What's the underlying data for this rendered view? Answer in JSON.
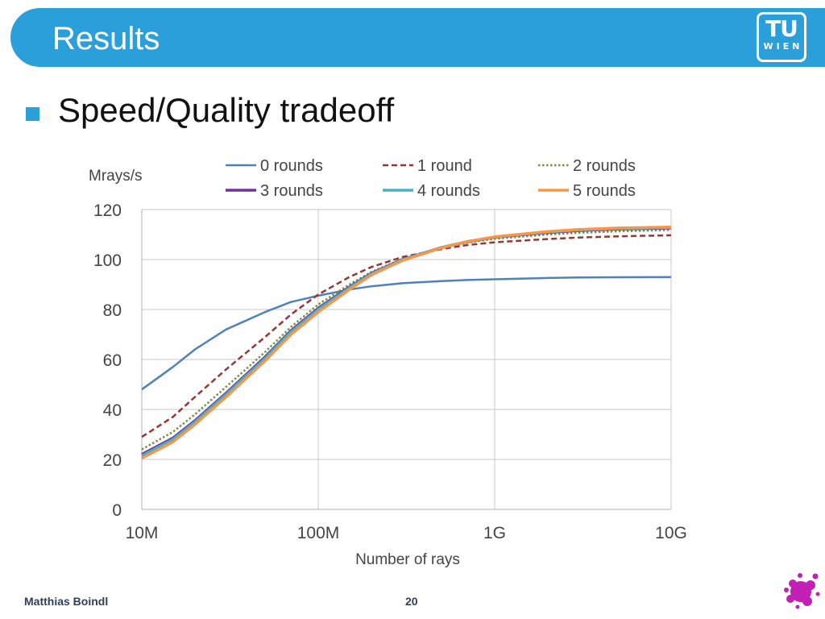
{
  "slide": {
    "title": "Results",
    "bullet": "Speed/Quality tradeoff",
    "footer_author": "Matthias Boindl",
    "page_number": "20",
    "logo_main": "TU",
    "logo_sub": "WIEN",
    "accent_color": "#2a9fd9",
    "footer_text_color": "#2e3f56",
    "splat_color": "#c21fb4"
  },
  "chart_data": {
    "type": "line",
    "title": "",
    "ylabel": "Mrays/s",
    "xlabel": "Number of rays",
    "x_scale": "log",
    "x": [
      10000000,
      15000000,
      20000000,
      30000000,
      50000000,
      70000000,
      100000000,
      150000000,
      200000000,
      300000000,
      500000000,
      700000000,
      1000000000,
      2000000000,
      3000000000,
      5000000000,
      10000000000
    ],
    "x_ticks": [
      "10M",
      "100M",
      "1G",
      "10G"
    ],
    "xlim": [
      10000000,
      10000000000
    ],
    "ylim": [
      0,
      120
    ],
    "y_ticks": [
      "0",
      "20",
      "40",
      "60",
      "80",
      "100",
      "120"
    ],
    "grid": true,
    "legend_position": "top",
    "series": [
      {
        "name": "0 rounds",
        "color": "#4f81bd",
        "dash": "solid",
        "values": [
          48,
          57,
          64,
          72,
          79,
          83,
          85.5,
          88,
          89.3,
          90.5,
          91.4,
          91.8,
          92.1,
          92.6,
          92.8,
          92.9,
          93
        ]
      },
      {
        "name": "1 round",
        "color": "#953735",
        "dash": "dashed",
        "values": [
          29,
          37,
          45,
          56,
          69,
          78,
          86,
          93,
          97,
          101,
          104.2,
          105.8,
          106.9,
          108.2,
          108.8,
          109.3,
          109.7
        ]
      },
      {
        "name": "2 rounds",
        "color": "#77933c",
        "dash": "dotted",
        "values": [
          24,
          31,
          38,
          49,
          63,
          73,
          82,
          90,
          95,
          100.3,
          104.6,
          106.8,
          108.3,
          110,
          110.7,
          111.3,
          111.8
        ]
      },
      {
        "name": "3 rounds",
        "color": "#7030a0",
        "dash": "solid",
        "values": [
          22,
          28.5,
          35.5,
          46.5,
          61,
          71.5,
          80.5,
          89,
          94.5,
          100,
          104.8,
          107.1,
          108.9,
          110.8,
          111.6,
          112.2,
          112.6
        ]
      },
      {
        "name": "4 rounds",
        "color": "#4bacc6",
        "dash": "solid",
        "values": [
          21.5,
          28,
          35,
          46,
          60.5,
          71,
          80,
          88.7,
          94.3,
          99.9,
          104.8,
          107.2,
          109,
          111,
          111.8,
          112.4,
          112.8
        ]
      },
      {
        "name": "5 rounds",
        "color": "#f79646",
        "dash": "solid",
        "values": [
          20.5,
          27,
          34,
          45,
          59.5,
          70,
          79,
          88,
          93.8,
          99.6,
          104.7,
          107.2,
          109.1,
          111.2,
          112,
          112.6,
          113
        ]
      }
    ]
  }
}
